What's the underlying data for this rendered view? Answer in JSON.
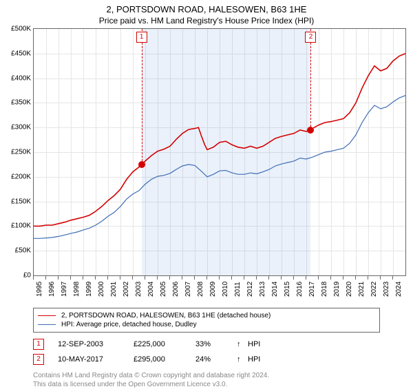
{
  "title": "2, PORTSDOWN ROAD, HALESOWEN, B63 1HE",
  "subtitle": "Price paid vs. HM Land Registry's House Price Index (HPI)",
  "chart": {
    "type": "line",
    "background_color": "#ffffff",
    "grid_color": "#e5e5e5",
    "border_color": "#666666",
    "x": {
      "min": 1995,
      "max": 2025,
      "ticks": [
        1995,
        1996,
        1997,
        1998,
        1999,
        2000,
        2001,
        2002,
        2003,
        2004,
        2005,
        2006,
        2007,
        2008,
        2009,
        2010,
        2011,
        2012,
        2013,
        2014,
        2015,
        2016,
        2017,
        2018,
        2019,
        2020,
        2021,
        2022,
        2023,
        2024
      ],
      "label_fontsize": 10,
      "label_rotation": -90
    },
    "y": {
      "min": 0,
      "max": 500000,
      "ticks": [
        0,
        50000,
        100000,
        150000,
        200000,
        250000,
        300000,
        350000,
        400000,
        450000,
        500000
      ],
      "tick_labels": [
        "£0",
        "£50K",
        "£100K",
        "£150K",
        "£200K",
        "£250K",
        "£300K",
        "£350K",
        "£400K",
        "£450K",
        "£500K"
      ],
      "label_fontsize": 10
    },
    "shaded_region": {
      "x_start": 2003.7,
      "x_end": 2017.36,
      "fill": "rgba(82,136,219,0.12)"
    },
    "series": [
      {
        "name": "2, PORTSDOWN ROAD, HALESOWEN, B63 1HE (detached house)",
        "color": "#d40000",
        "line_width": 1.6,
        "data": [
          [
            1995,
            100000
          ],
          [
            1995.5,
            100000
          ],
          [
            1996,
            102000
          ],
          [
            1996.5,
            102000
          ],
          [
            1997,
            105000
          ],
          [
            1997.5,
            108000
          ],
          [
            1998,
            112000
          ],
          [
            1998.5,
            115000
          ],
          [
            1999,
            118000
          ],
          [
            1999.5,
            122000
          ],
          [
            2000,
            130000
          ],
          [
            2000.5,
            140000
          ],
          [
            2001,
            152000
          ],
          [
            2001.5,
            162000
          ],
          [
            2002,
            175000
          ],
          [
            2002.5,
            195000
          ],
          [
            2003,
            210000
          ],
          [
            2003.5,
            220000
          ],
          [
            2003.7,
            225000
          ],
          [
            2004,
            232000
          ],
          [
            2004.5,
            243000
          ],
          [
            2005,
            252000
          ],
          [
            2005.5,
            256000
          ],
          [
            2006,
            262000
          ],
          [
            2006.5,
            276000
          ],
          [
            2007,
            288000
          ],
          [
            2007.5,
            296000
          ],
          [
            2008,
            298000
          ],
          [
            2008.3,
            300000
          ],
          [
            2008.5,
            285000
          ],
          [
            2008.8,
            265000
          ],
          [
            2009,
            255000
          ],
          [
            2009.5,
            260000
          ],
          [
            2010,
            270000
          ],
          [
            2010.5,
            272000
          ],
          [
            2011,
            265000
          ],
          [
            2011.5,
            260000
          ],
          [
            2012,
            258000
          ],
          [
            2012.5,
            262000
          ],
          [
            2013,
            258000
          ],
          [
            2013.5,
            262000
          ],
          [
            2014,
            270000
          ],
          [
            2014.5,
            278000
          ],
          [
            2015,
            282000
          ],
          [
            2015.5,
            285000
          ],
          [
            2016,
            288000
          ],
          [
            2016.5,
            295000
          ],
          [
            2017,
            292000
          ],
          [
            2017.36,
            295000
          ],
          [
            2017.5,
            298000
          ],
          [
            2018,
            305000
          ],
          [
            2018.5,
            310000
          ],
          [
            2019,
            312000
          ],
          [
            2019.5,
            315000
          ],
          [
            2020,
            318000
          ],
          [
            2020.5,
            330000
          ],
          [
            2021,
            350000
          ],
          [
            2021.5,
            380000
          ],
          [
            2022,
            405000
          ],
          [
            2022.5,
            425000
          ],
          [
            2023,
            415000
          ],
          [
            2023.5,
            420000
          ],
          [
            2024,
            435000
          ],
          [
            2024.5,
            445000
          ],
          [
            2025,
            450000
          ]
        ]
      },
      {
        "name": "HPI: Average price, detached house, Dudley",
        "color": "#3f6db5",
        "line_width": 1.2,
        "data": [
          [
            1995,
            75000
          ],
          [
            1995.5,
            75000
          ],
          [
            1996,
            76000
          ],
          [
            1996.5,
            77000
          ],
          [
            1997,
            79000
          ],
          [
            1997.5,
            82000
          ],
          [
            1998,
            85000
          ],
          [
            1998.5,
            88000
          ],
          [
            1999,
            92000
          ],
          [
            1999.5,
            96000
          ],
          [
            2000,
            102000
          ],
          [
            2000.5,
            110000
          ],
          [
            2001,
            120000
          ],
          [
            2001.5,
            128000
          ],
          [
            2002,
            140000
          ],
          [
            2002.5,
            155000
          ],
          [
            2003,
            165000
          ],
          [
            2003.5,
            172000
          ],
          [
            2004,
            185000
          ],
          [
            2004.5,
            195000
          ],
          [
            2005,
            201000
          ],
          [
            2005.5,
            203000
          ],
          [
            2006,
            207000
          ],
          [
            2006.5,
            215000
          ],
          [
            2007,
            222000
          ],
          [
            2007.5,
            225000
          ],
          [
            2008,
            223000
          ],
          [
            2008.5,
            212000
          ],
          [
            2009,
            200000
          ],
          [
            2009.5,
            205000
          ],
          [
            2010,
            212000
          ],
          [
            2010.5,
            213000
          ],
          [
            2011,
            208000
          ],
          [
            2011.5,
            205000
          ],
          [
            2012,
            205000
          ],
          [
            2012.5,
            208000
          ],
          [
            2013,
            206000
          ],
          [
            2013.5,
            210000
          ],
          [
            2014,
            215000
          ],
          [
            2014.5,
            222000
          ],
          [
            2015,
            226000
          ],
          [
            2015.5,
            229000
          ],
          [
            2016,
            232000
          ],
          [
            2016.5,
            238000
          ],
          [
            2017,
            236000
          ],
          [
            2017.5,
            240000
          ],
          [
            2018,
            245000
          ],
          [
            2018.5,
            250000
          ],
          [
            2019,
            252000
          ],
          [
            2019.5,
            255000
          ],
          [
            2020,
            258000
          ],
          [
            2020.5,
            268000
          ],
          [
            2021,
            285000
          ],
          [
            2021.5,
            310000
          ],
          [
            2022,
            330000
          ],
          [
            2022.5,
            345000
          ],
          [
            2023,
            338000
          ],
          [
            2023.5,
            342000
          ],
          [
            2024,
            352000
          ],
          [
            2024.5,
            360000
          ],
          [
            2025,
            365000
          ]
        ]
      }
    ],
    "markers": [
      {
        "n": "1",
        "x": 2003.7,
        "y": 225000
      },
      {
        "n": "2",
        "x": 2017.36,
        "y": 295000
      }
    ]
  },
  "legend": {
    "border_color": "#666666",
    "fontsize": 10,
    "items": [
      {
        "color": "#d40000",
        "width": 1.6,
        "label": "2, PORTSDOWN ROAD, HALESOWEN, B63 1HE (detached house)"
      },
      {
        "color": "#3f6db5",
        "width": 1.2,
        "label": "HPI: Average price, detached house, Dudley"
      }
    ]
  },
  "sales": [
    {
      "n": "1",
      "date": "12-SEP-2003",
      "price": "£225,000",
      "pct": "33%",
      "arrow": "↑",
      "vs": "HPI"
    },
    {
      "n": "2",
      "date": "10-MAY-2017",
      "price": "£295,000",
      "pct": "24%",
      "arrow": "↑",
      "vs": "HPI"
    }
  ],
  "footer_line1": "Contains HM Land Registry data © Crown copyright and database right 2024.",
  "footer_line2": "This data is licensed under the Open Government Licence v3.0.",
  "colors": {
    "marker_border": "#d40000",
    "footer_text": "#888888"
  }
}
